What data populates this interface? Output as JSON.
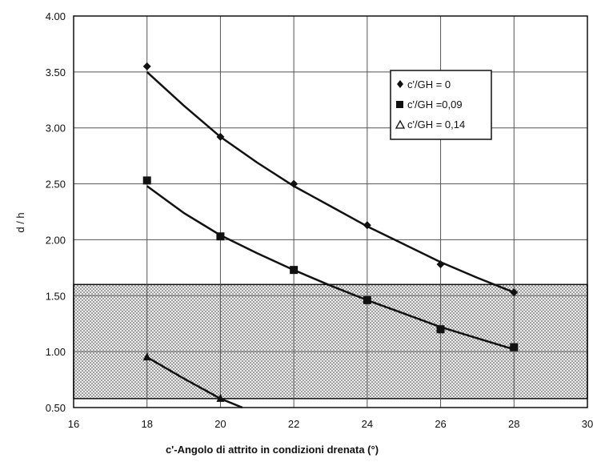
{
  "chart_data": {
    "type": "scatter",
    "xlabel": "c'-Angolo di attrito in condizioni drenata (°)",
    "ylabel": "d / h",
    "xlim": [
      16,
      30
    ],
    "ylim": [
      0.5,
      4.0
    ],
    "x_ticks": [
      "16",
      "18",
      "20",
      "22",
      "24",
      "26",
      "28",
      "30"
    ],
    "y_ticks": [
      "0.50",
      "1.00",
      "1.50",
      "2.00",
      "2.50",
      "3.00",
      "3.50",
      "4.00"
    ],
    "grid": true,
    "legend_position": "top-right",
    "shaded_band": {
      "y_from": 0.58,
      "y_to": 1.6,
      "pattern": "dotted"
    },
    "series": [
      {
        "name": "c'/GH = 0",
        "marker": "diamond",
        "x": [
          18,
          20,
          22,
          24,
          26,
          28
        ],
        "y": [
          3.55,
          2.92,
          2.5,
          2.13,
          1.78,
          1.53
        ],
        "trend": [
          [
            18,
            3.5
          ],
          [
            19,
            3.2
          ],
          [
            20,
            2.92
          ],
          [
            21,
            2.69
          ],
          [
            22,
            2.48
          ],
          [
            23,
            2.3
          ],
          [
            24,
            2.12
          ],
          [
            25,
            1.96
          ],
          [
            26,
            1.8
          ],
          [
            27,
            1.66
          ],
          [
            28,
            1.53
          ]
        ]
      },
      {
        "name": "c'/GH =0,09",
        "marker": "square",
        "x": [
          18,
          20,
          22,
          24,
          26,
          28
        ],
        "y": [
          2.53,
          2.03,
          1.73,
          1.46,
          1.2,
          1.04
        ],
        "trend": [
          [
            18,
            2.48
          ],
          [
            19,
            2.24
          ],
          [
            20,
            2.04
          ],
          [
            21,
            1.88
          ],
          [
            22,
            1.73
          ],
          [
            23,
            1.59
          ],
          [
            24,
            1.46
          ],
          [
            25,
            1.34
          ],
          [
            26,
            1.22
          ],
          [
            27,
            1.12
          ],
          [
            28,
            1.02
          ]
        ]
      },
      {
        "name": "c'/GH = 0,14",
        "marker": "triangle",
        "x": [
          18,
          20
        ],
        "y": [
          0.95,
          0.58
        ],
        "trend": [
          [
            18,
            0.95
          ],
          [
            19,
            0.76
          ],
          [
            20,
            0.58
          ],
          [
            20.6,
            0.5
          ]
        ]
      }
    ]
  }
}
